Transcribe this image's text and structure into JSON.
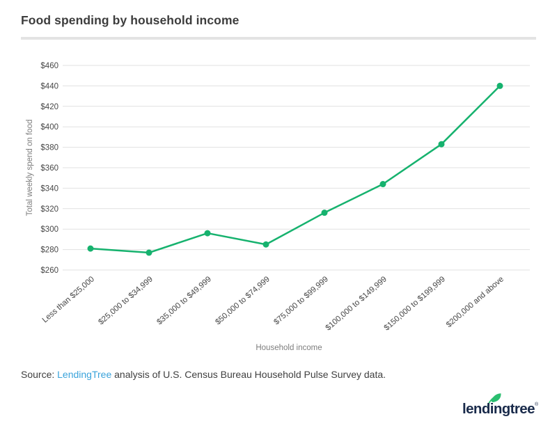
{
  "title": "Food spending by household income",
  "chart_data": {
    "type": "line",
    "title": "Food spending by household income",
    "categories": [
      "Less than $25,000",
      "$25,000 to $34,999",
      "$35,000 to $49,999",
      "$50,000 to $74,999",
      "$75,000 to $99,999",
      "$100,000 to $149,999",
      "$150,000 to $199,999",
      "$200,000 and above"
    ],
    "values": [
      281,
      277,
      296,
      285,
      316,
      344,
      383,
      440
    ],
    "xlabel": "Household income",
    "ylabel": "Total weekly spend on food",
    "ylim": [
      260,
      460
    ],
    "ytick_step": 20,
    "ytick_prefix": "$",
    "grid": "horizontal-only",
    "legend": "none",
    "line_color": "#16b26e",
    "marker": "circle",
    "marker_color": "#16b26e"
  },
  "source": {
    "prefix": "Source: ",
    "link_text": "LendingTree",
    "suffix": " analysis of U.S. Census Bureau Household Pulse Survey data.",
    "link_color": "#3aa3db"
  },
  "logo": {
    "text": "lendingtree",
    "registered": "®",
    "navy": "#1a2b4b",
    "leaf_green": "#2abe6f"
  },
  "colors": {
    "title_text": "#3d3d3d",
    "tick_text": "#474747",
    "axis_title_text": "#7d7d7d",
    "gridline": "#e1e1e1",
    "divider": "#e3e3e3",
    "accent_green": "#16b26e"
  }
}
